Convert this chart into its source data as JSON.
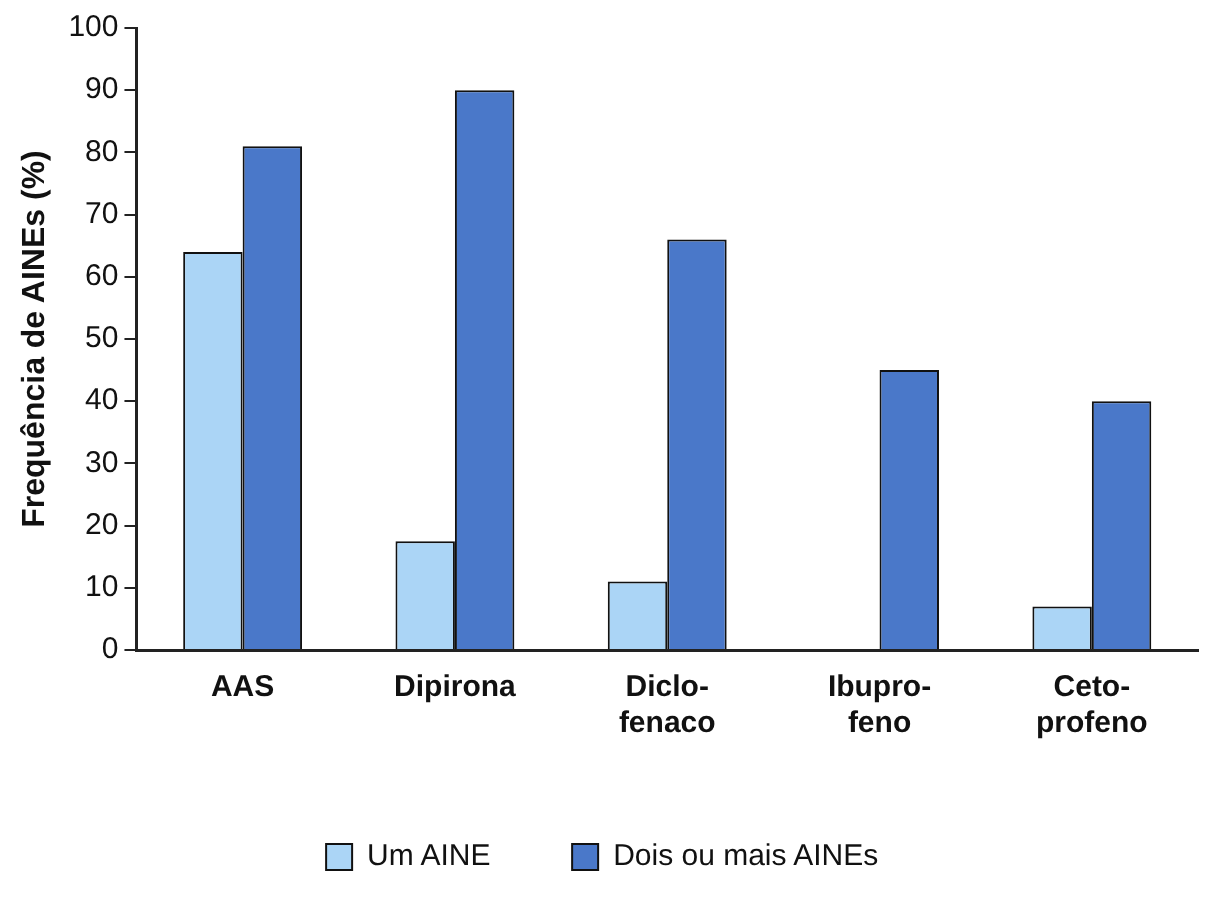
{
  "chart_data": {
    "type": "bar",
    "ylabel": "Frequência de AINEs (%)",
    "categories": [
      "AAS",
      "Dipirona",
      "Diclo- fenaco",
      "Ibupro- feno",
      "Ceto- profeno"
    ],
    "series": [
      {
        "name": "Um AINE",
        "color": "#abd5f6",
        "values": [
          64,
          17.5,
          11,
          0,
          7
        ]
      },
      {
        "name": "Dois ou mais AINEs",
        "color": "#4a78c9",
        "values": [
          81,
          90,
          66,
          45,
          40
        ]
      }
    ],
    "ylim": [
      0,
      100
    ],
    "yticks": [
      0,
      10,
      20,
      30,
      40,
      50,
      60,
      70,
      80,
      90,
      100
    ],
    "grid": false,
    "legend": "bottom"
  }
}
